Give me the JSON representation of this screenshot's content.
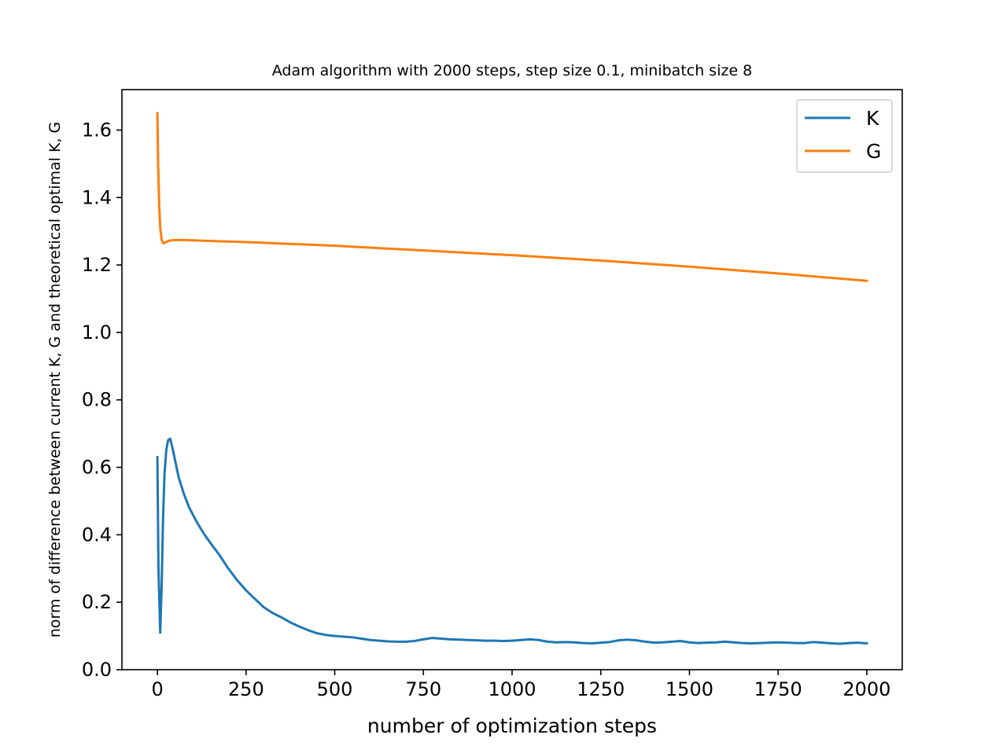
{
  "chart_data": {
    "type": "line",
    "title": "Adam algorithm with 2000 steps, step size 0.1, minibatch size 8",
    "xlabel": "number of optimization steps",
    "ylabel": "norm of difference between current K, G and theoretical optimal K, G",
    "xlim": [
      -100,
      2100
    ],
    "ylim": [
      0,
      1.72
    ],
    "xticks": [
      0,
      250,
      500,
      750,
      1000,
      1250,
      1500,
      1750,
      2000
    ],
    "xtick_labels": [
      "0",
      "250",
      "500",
      "750",
      "1000",
      "1250",
      "1500",
      "1750",
      "2000"
    ],
    "yticks": [
      0.0,
      0.2,
      0.4,
      0.6,
      0.8,
      1.0,
      1.2,
      1.4,
      1.6
    ],
    "ytick_labels": [
      "0.0",
      "0.2",
      "0.4",
      "0.6",
      "0.8",
      "1.0",
      "1.2",
      "1.4",
      "1.6"
    ],
    "grid": false,
    "legend_position": "top-right",
    "series": [
      {
        "name": "K",
        "color": "#1f77b4",
        "x": [
          0,
          3,
          8,
          12,
          16,
          20,
          25,
          30,
          36,
          42,
          50,
          60,
          75,
          90,
          110,
          130,
          150,
          175,
          200,
          225,
          250,
          275,
          300,
          325,
          350,
          375,
          400,
          425,
          450,
          475,
          500,
          525,
          550,
          575,
          600,
          625,
          650,
          675,
          700,
          725,
          750,
          775,
          800,
          825,
          850,
          875,
          900,
          925,
          950,
          975,
          1000,
          1025,
          1050,
          1075,
          1100,
          1125,
          1150,
          1175,
          1200,
          1225,
          1250,
          1275,
          1300,
          1325,
          1350,
          1375,
          1400,
          1425,
          1450,
          1475,
          1500,
          1525,
          1550,
          1575,
          1600,
          1625,
          1650,
          1675,
          1700,
          1725,
          1750,
          1775,
          1800,
          1825,
          1850,
          1875,
          1900,
          1925,
          1950,
          1975,
          2000
        ],
        "values": [
          0.63,
          0.3,
          0.11,
          0.25,
          0.45,
          0.58,
          0.65,
          0.68,
          0.685,
          0.66,
          0.62,
          0.57,
          0.52,
          0.48,
          0.44,
          0.405,
          0.375,
          0.34,
          0.3,
          0.265,
          0.235,
          0.21,
          0.185,
          0.168,
          0.155,
          0.14,
          0.128,
          0.117,
          0.108,
          0.103,
          0.1,
          0.098,
          0.096,
          0.092,
          0.088,
          0.086,
          0.084,
          0.083,
          0.083,
          0.085,
          0.09,
          0.094,
          0.092,
          0.09,
          0.089,
          0.088,
          0.087,
          0.086,
          0.086,
          0.085,
          0.086,
          0.088,
          0.09,
          0.088,
          0.083,
          0.081,
          0.082,
          0.081,
          0.079,
          0.078,
          0.08,
          0.082,
          0.087,
          0.089,
          0.087,
          0.083,
          0.08,
          0.081,
          0.083,
          0.085,
          0.081,
          0.079,
          0.08,
          0.081,
          0.083,
          0.081,
          0.079,
          0.078,
          0.079,
          0.08,
          0.081,
          0.08,
          0.079,
          0.079,
          0.082,
          0.08,
          0.078,
          0.077,
          0.079,
          0.08,
          0.078
        ]
      },
      {
        "name": "G",
        "color": "#ff7f0e",
        "x": [
          0,
          2,
          5,
          8,
          12,
          16,
          20,
          25,
          30,
          40,
          50,
          75,
          100,
          250,
          500,
          750,
          1000,
          1250,
          1500,
          1750,
          2000
        ],
        "values": [
          1.65,
          1.5,
          1.38,
          1.31,
          1.275,
          1.265,
          1.265,
          1.268,
          1.271,
          1.273,
          1.274,
          1.274,
          1.273,
          1.268,
          1.257,
          1.243,
          1.229,
          1.213,
          1.195,
          1.175,
          1.153
        ]
      }
    ]
  }
}
